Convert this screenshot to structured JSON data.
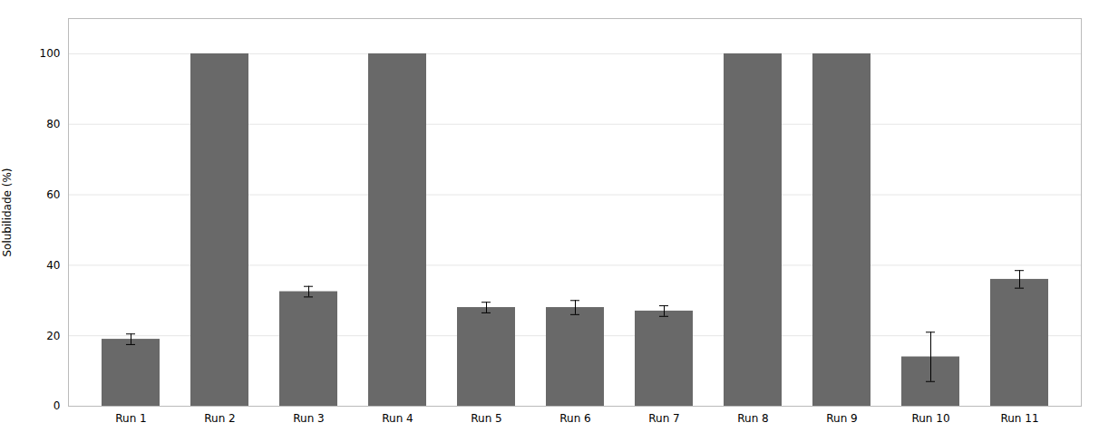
{
  "chart_data": {
    "type": "bar",
    "categories": [
      "Run 1",
      "Run 2",
      "Run 3",
      "Run 4",
      "Run 5",
      "Run 6",
      "Run 7",
      "Run 8",
      "Run 9",
      "Run 10",
      "Run 11"
    ],
    "values": [
      19.0,
      100.0,
      32.5,
      100.0,
      28.0,
      28.0,
      27.0,
      100.0,
      100.0,
      14.0,
      36.0
    ],
    "errors": [
      1.5,
      0.0,
      1.5,
      0.0,
      1.5,
      2.0,
      1.5,
      0.0,
      0.0,
      7.0,
      2.5
    ],
    "color": "#696969",
    "ylabel": "Solubilidade (%)",
    "ylim": [
      0,
      110
    ],
    "yticks": [
      0,
      20,
      40,
      60,
      80,
      100
    ],
    "grid": true
  }
}
